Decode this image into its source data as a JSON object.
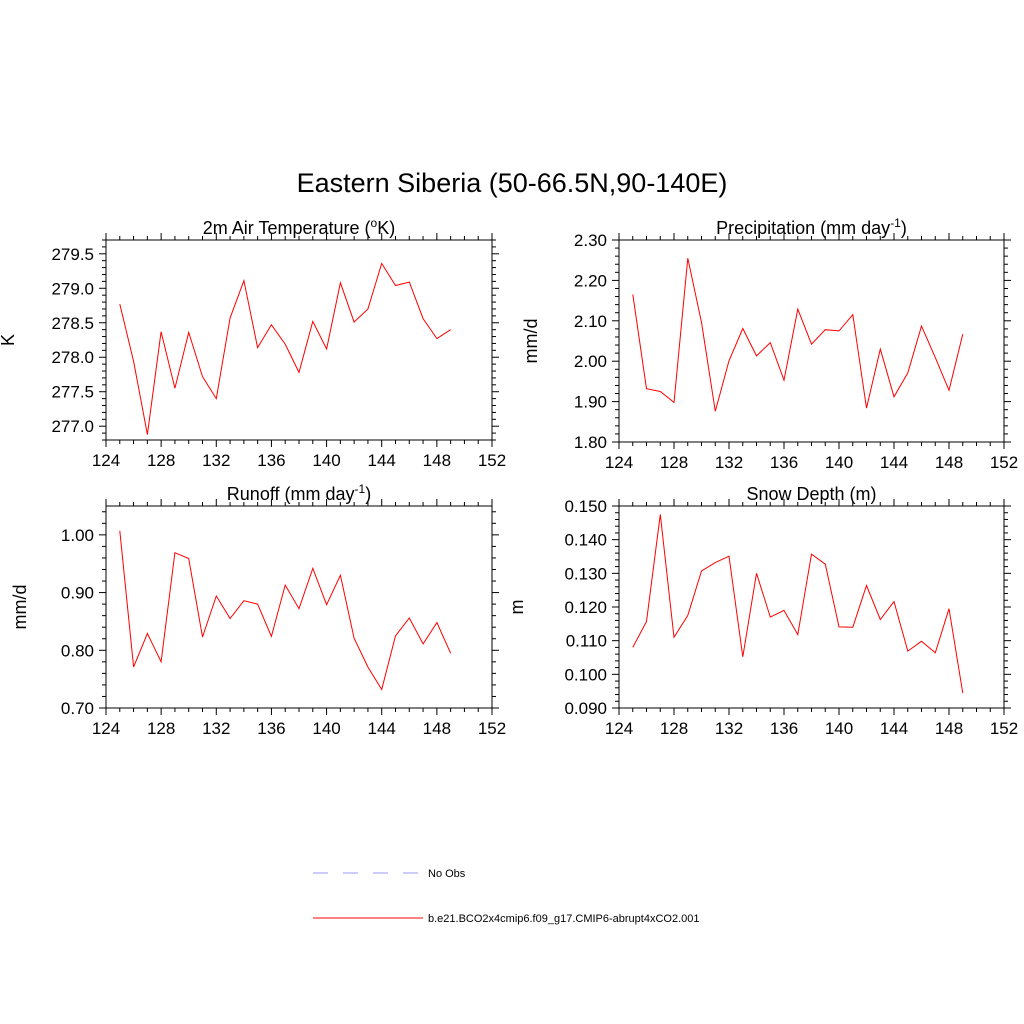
{
  "title": "Eastern Siberia (50-66.5N,90-140E)",
  "colors": {
    "model": "#ff0000",
    "obs": "#9999ff",
    "axis": "#000000"
  },
  "legend": [
    {
      "label": "No Obs",
      "style": "dashed",
      "color": "#9999ff"
    },
    {
      "label": "b.e21.BCO2x4cmip6.f09_g17.CMIP6-abrupt4xCO2.001",
      "style": "solid",
      "color": "#ff0000"
    }
  ],
  "chart_data": [
    {
      "type": "line",
      "title": "2m Air Temperature (",
      "title_sup": "o",
      "title_after": "K)",
      "ylabel": "K",
      "xlim": [
        124,
        152
      ],
      "ylim": [
        276.8,
        279.7
      ],
      "xticks": [
        124,
        128,
        132,
        136,
        140,
        144,
        148,
        152
      ],
      "xtick_labels": [
        "124",
        "128",
        "132",
        "136",
        "140",
        "144",
        "148",
        "152"
      ],
      "yticks": [
        277.0,
        277.5,
        278.0,
        278.5,
        279.0,
        279.5
      ],
      "ytick_labels": [
        "277.0",
        "277.5",
        "278.0",
        "278.5",
        "279.0",
        "279.5"
      ],
      "series": [
        {
          "x": [
            125,
            126,
            127,
            128,
            129,
            130,
            131,
            132,
            133,
            134,
            135,
            136,
            137,
            138,
            139,
            140,
            141,
            142,
            143,
            144,
            145,
            146,
            147,
            148,
            149
          ],
          "y": [
            278.77,
            277.94,
            276.88,
            278.37,
            277.55,
            278.36,
            277.72,
            277.4,
            278.57,
            279.11,
            278.14,
            278.47,
            278.19,
            277.78,
            278.52,
            278.12,
            279.08,
            278.51,
            278.7,
            279.36,
            279.04,
            279.09,
            278.56,
            278.27,
            278.4
          ]
        }
      ]
    },
    {
      "type": "line",
      "title": "Precipitation (mm day",
      "title_sup": "-1",
      "title_after": ")",
      "ylabel": "mm/d",
      "xlim": [
        124,
        152
      ],
      "ylim": [
        1.8,
        2.3
      ],
      "xticks": [
        124,
        128,
        132,
        136,
        140,
        144,
        148,
        152
      ],
      "xtick_labels": [
        "124",
        "128",
        "132",
        "136",
        "140",
        "144",
        "148",
        "152"
      ],
      "yticks": [
        1.8,
        1.9,
        2.0,
        2.1,
        2.2,
        2.3
      ],
      "ytick_labels": [
        "1.80",
        "1.90",
        "2.00",
        "2.10",
        "2.20",
        "2.30"
      ],
      "series": [
        {
          "x": [
            125,
            126,
            127,
            128,
            129,
            130,
            131,
            132,
            133,
            134,
            135,
            136,
            137,
            138,
            139,
            140,
            141,
            142,
            143,
            144,
            145,
            146,
            147,
            148,
            149
          ],
          "y": [
            2.165,
            1.932,
            1.925,
            1.898,
            2.255,
            2.096,
            1.876,
            2.001,
            2.081,
            2.013,
            2.046,
            1.953,
            2.129,
            2.042,
            2.078,
            2.075,
            2.115,
            1.884,
            2.03,
            1.912,
            1.971,
            2.087,
            2.009,
            1.928,
            2.067
          ]
        }
      ]
    },
    {
      "type": "line",
      "title": "Runoff (mm day",
      "title_sup": "-1",
      "title_after": ")",
      "ylabel": "mm/d",
      "xlim": [
        124,
        152
      ],
      "ylim": [
        0.7,
        1.05
      ],
      "xticks": [
        124,
        128,
        132,
        136,
        140,
        144,
        148,
        152
      ],
      "xtick_labels": [
        "124",
        "128",
        "132",
        "136",
        "140",
        "144",
        "148",
        "152"
      ],
      "yticks": [
        0.7,
        0.8,
        0.9,
        1.0
      ],
      "ytick_labels": [
        "0.70",
        "0.80",
        "0.90",
        "1.00"
      ],
      "series": [
        {
          "x": [
            125,
            126,
            127,
            128,
            129,
            130,
            131,
            132,
            133,
            134,
            135,
            136,
            137,
            138,
            139,
            140,
            141,
            142,
            143,
            144,
            145,
            146,
            147,
            148,
            149
          ],
          "y": [
            1.007,
            0.771,
            0.829,
            0.78,
            0.969,
            0.959,
            0.823,
            0.894,
            0.855,
            0.886,
            0.88,
            0.824,
            0.913,
            0.872,
            0.942,
            0.879,
            0.93,
            0.821,
            0.771,
            0.732,
            0.825,
            0.856,
            0.811,
            0.848,
            0.795
          ]
        }
      ]
    },
    {
      "type": "line",
      "title": "Snow Depth (m)",
      "title_sup": "",
      "title_after": "",
      "ylabel": "m",
      "xlim": [
        124,
        152
      ],
      "ylim": [
        0.09,
        0.15
      ],
      "xticks": [
        124,
        128,
        132,
        136,
        140,
        144,
        148,
        152
      ],
      "xtick_labels": [
        "124",
        "128",
        "132",
        "136",
        "140",
        "144",
        "148",
        "152"
      ],
      "yticks": [
        0.09,
        0.1,
        0.11,
        0.12,
        0.13,
        0.14,
        0.15
      ],
      "ytick_labels": [
        "0.090",
        "0.100",
        "0.110",
        "0.120",
        "0.130",
        "0.140",
        "0.150"
      ],
      "series": [
        {
          "x": [
            125,
            126,
            127,
            128,
            129,
            130,
            131,
            132,
            133,
            134,
            135,
            136,
            137,
            138,
            139,
            140,
            141,
            142,
            143,
            144,
            145,
            146,
            147,
            148,
            149
          ],
          "y": [
            0.108,
            0.1157,
            0.1475,
            0.111,
            0.1175,
            0.1307,
            0.1332,
            0.1351,
            0.1052,
            0.13,
            0.117,
            0.119,
            0.1118,
            0.1357,
            0.1327,
            0.1141,
            0.114,
            0.1264,
            0.1163,
            0.1216,
            0.1069,
            0.1098,
            0.1064,
            0.1195,
            0.0944
          ]
        }
      ]
    }
  ]
}
